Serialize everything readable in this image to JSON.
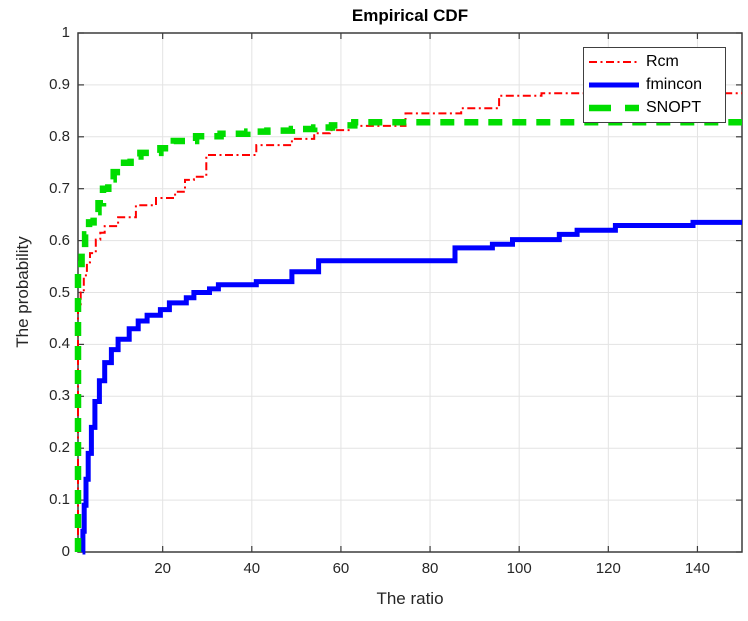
{
  "chart_data": {
    "type": "line",
    "subtype": "empirical-cdf-staircase",
    "title": "Empirical CDF",
    "xlabel": "The ratio",
    "ylabel": "The probability",
    "xlim": [
      1,
      150
    ],
    "ylim": [
      0,
      1
    ],
    "xticks": [
      20,
      40,
      60,
      80,
      100,
      120,
      140
    ],
    "xtick_labels": [
      "20",
      "40",
      "60",
      "80",
      "100",
      "120",
      "140"
    ],
    "yticks": [
      0,
      0.1,
      0.2,
      0.3,
      0.4,
      0.5,
      0.6,
      0.7,
      0.8,
      0.9,
      1
    ],
    "ytick_labels": [
      "0",
      "0.1",
      "0.2",
      "0.3",
      "0.4",
      "0.5",
      "0.6",
      "0.7",
      "0.8",
      "0.9",
      "1"
    ],
    "grid": true,
    "grid_color": "#e3e3e3",
    "axis_color": "#3c3c3c",
    "background": "#ffffff",
    "legend_position": "northeast",
    "series": [
      {
        "name": "Rcm",
        "color": "#ff0000",
        "style": "dash-dot",
        "width": 2,
        "start": [
          1,
          0
        ],
        "points": [
          [
            1,
            0.47
          ],
          [
            1.6,
            0.5
          ],
          [
            2.3,
            0.533
          ],
          [
            3,
            0.558
          ],
          [
            3.7,
            0.576
          ],
          [
            5,
            0.602
          ],
          [
            6,
            0.615
          ],
          [
            7,
            0.628
          ],
          [
            10,
            0.645
          ],
          [
            14,
            0.668
          ],
          [
            18.5,
            0.682
          ],
          [
            22.8,
            0.694
          ],
          [
            25,
            0.717
          ],
          [
            27,
            0.723
          ],
          [
            29.8,
            0.765
          ],
          [
            41,
            0.784
          ],
          [
            49,
            0.796
          ],
          [
            54,
            0.807
          ],
          [
            57.5,
            0.813
          ],
          [
            62,
            0.821
          ],
          [
            74.5,
            0.845
          ],
          [
            87,
            0.855
          ],
          [
            95.5,
            0.879
          ],
          [
            105,
            0.884
          ],
          [
            150,
            0.884
          ]
        ]
      },
      {
        "name": "fmincon",
        "color": "#0000ff",
        "style": "solid",
        "width": 5,
        "start": [
          2,
          0
        ],
        "points": [
          [
            2.1,
            0.04
          ],
          [
            2.4,
            0.09
          ],
          [
            2.8,
            0.14
          ],
          [
            3.3,
            0.19
          ],
          [
            4,
            0.24
          ],
          [
            4.8,
            0.29
          ],
          [
            5.8,
            0.33
          ],
          [
            7,
            0.365
          ],
          [
            8.5,
            0.39
          ],
          [
            10,
            0.41
          ],
          [
            12.5,
            0.43
          ],
          [
            14.5,
            0.445
          ],
          [
            16.5,
            0.456
          ],
          [
            19.5,
            0.467
          ],
          [
            21.5,
            0.48
          ],
          [
            25.3,
            0.49
          ],
          [
            27,
            0.5
          ],
          [
            30.5,
            0.507
          ],
          [
            32.5,
            0.515
          ],
          [
            41,
            0.521
          ],
          [
            49,
            0.54
          ],
          [
            55,
            0.561
          ],
          [
            85.6,
            0.586
          ],
          [
            94,
            0.593
          ],
          [
            98.5,
            0.602
          ],
          [
            109,
            0.612
          ],
          [
            113,
            0.62
          ],
          [
            121.6,
            0.629
          ],
          [
            139,
            0.635
          ],
          [
            150,
            0.635
          ]
        ]
      },
      {
        "name": "SNOPT",
        "color": "#00dd00",
        "style": "dashed",
        "width": 6.5,
        "start": [
          1,
          0
        ],
        "points": [
          [
            1,
            0.555
          ],
          [
            1.8,
            0.585
          ],
          [
            2.6,
            0.612
          ],
          [
            3.5,
            0.635
          ],
          [
            4.5,
            0.655
          ],
          [
            5.6,
            0.672
          ],
          [
            6.6,
            0.7
          ],
          [
            7.8,
            0.718
          ],
          [
            9,
            0.732
          ],
          [
            10.5,
            0.75
          ],
          [
            12.8,
            0.762
          ],
          [
            15,
            0.769
          ],
          [
            19.5,
            0.778
          ],
          [
            22.5,
            0.792
          ],
          [
            27.5,
            0.801
          ],
          [
            33,
            0.806
          ],
          [
            39,
            0.81
          ],
          [
            43.5,
            0.812
          ],
          [
            49,
            0.815
          ],
          [
            54,
            0.818
          ],
          [
            58,
            0.822
          ],
          [
            63,
            0.828
          ],
          [
            150,
            0.828
          ]
        ]
      }
    ]
  }
}
